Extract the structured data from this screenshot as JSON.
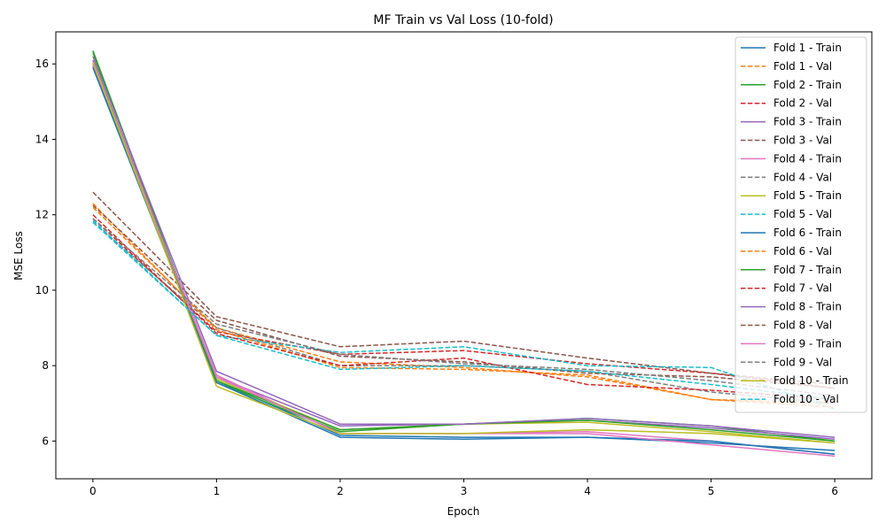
{
  "chart_data": {
    "type": "line",
    "title": "MF Train vs Val Loss (10-fold)",
    "xlabel": "Epoch",
    "ylabel": "MSE Loss",
    "x": [
      0,
      1,
      2,
      3,
      4,
      5,
      6
    ],
    "xticks": [
      0,
      1,
      2,
      3,
      4,
      5,
      6
    ],
    "yticks": [
      6,
      8,
      10,
      12,
      14,
      16
    ],
    "xlim": [
      -0.3,
      6.3
    ],
    "ylim": [
      5.0,
      16.85
    ],
    "grid": false,
    "legend": "top-right",
    "series": [
      {
        "name": "Fold 1 - Train",
        "color": "#1f77b4",
        "dash": "solid",
        "values": [
          15.95,
          7.6,
          6.15,
          6.1,
          6.1,
          5.95,
          5.75
        ]
      },
      {
        "name": "Fold 1 - Val",
        "color": "#ff7f0e",
        "dash": "dashed",
        "values": [
          12.2,
          9.0,
          8.1,
          7.95,
          7.7,
          7.1,
          7.0
        ]
      },
      {
        "name": "Fold 2 - Train",
        "color": "#2ca02c",
        "dash": "solid",
        "values": [
          16.35,
          7.55,
          6.25,
          6.45,
          6.6,
          6.4,
          6.0
        ]
      },
      {
        "name": "Fold 2 - Val",
        "color": "#d62728",
        "dash": "dashed",
        "values": [
          11.9,
          8.9,
          8.3,
          8.4,
          8.05,
          7.8,
          7.4
        ]
      },
      {
        "name": "Fold 3 - Train",
        "color": "#9467bd",
        "dash": "solid",
        "values": [
          16.1,
          7.7,
          6.4,
          6.45,
          6.55,
          6.35,
          6.05
        ]
      },
      {
        "name": "Fold 3 - Val",
        "color": "#8c564b",
        "dash": "dashed",
        "values": [
          12.6,
          9.3,
          8.5,
          8.65,
          8.2,
          7.8,
          7.5
        ]
      },
      {
        "name": "Fold 4 - Train",
        "color": "#e377c2",
        "dash": "solid",
        "values": [
          16.0,
          7.75,
          6.2,
          6.2,
          6.25,
          6.0,
          5.65
        ]
      },
      {
        "name": "Fold 4 - Val",
        "color": "#7f7f7f",
        "dash": "dashed",
        "values": [
          11.8,
          9.0,
          8.0,
          8.0,
          7.85,
          7.3,
          7.0
        ]
      },
      {
        "name": "Fold 5 - Train",
        "color": "#bcbd22",
        "dash": "solid",
        "values": [
          16.05,
          7.65,
          6.3,
          6.45,
          6.5,
          6.25,
          5.95
        ]
      },
      {
        "name": "Fold 5 - Val",
        "color": "#17becf",
        "dash": "dashed",
        "values": [
          11.85,
          8.8,
          8.35,
          8.5,
          8.0,
          7.95,
          6.85
        ]
      },
      {
        "name": "Fold 6 - Train",
        "color": "#1f77b4",
        "dash": "solid",
        "values": [
          15.9,
          7.55,
          6.1,
          6.05,
          6.1,
          6.0,
          5.65
        ]
      },
      {
        "name": "Fold 6 - Val",
        "color": "#ff7f0e",
        "dash": "dashed",
        "values": [
          12.3,
          8.95,
          7.95,
          7.9,
          7.75,
          7.1,
          6.9
        ]
      },
      {
        "name": "Fold 7 - Train",
        "color": "#2ca02c",
        "dash": "solid",
        "values": [
          16.3,
          7.6,
          6.3,
          6.45,
          6.55,
          6.3,
          6.0
        ]
      },
      {
        "name": "Fold 7 - Val",
        "color": "#d62728",
        "dash": "dashed",
        "values": [
          12.0,
          8.85,
          8.0,
          8.2,
          7.5,
          7.35,
          7.1
        ]
      },
      {
        "name": "Fold 8 - Train",
        "color": "#9467bd",
        "dash": "solid",
        "values": [
          16.2,
          7.85,
          6.45,
          6.45,
          6.6,
          6.4,
          6.1
        ]
      },
      {
        "name": "Fold 8 - Val",
        "color": "#8c564b",
        "dash": "dashed",
        "values": [
          12.25,
          9.2,
          8.25,
          8.1,
          7.8,
          7.7,
          7.4
        ]
      },
      {
        "name": "Fold 9 - Train",
        "color": "#e377c2",
        "dash": "solid",
        "values": [
          16.0,
          7.7,
          6.2,
          6.2,
          6.2,
          5.9,
          5.6
        ]
      },
      {
        "name": "Fold 9 - Val",
        "color": "#7f7f7f",
        "dash": "dashed",
        "values": [
          11.9,
          9.1,
          8.3,
          8.05,
          7.9,
          7.6,
          7.2
        ]
      },
      {
        "name": "Fold 10 - Train",
        "color": "#bcbd22",
        "dash": "solid",
        "values": [
          16.05,
          7.45,
          6.2,
          6.2,
          6.3,
          6.2,
          5.95
        ]
      },
      {
        "name": "Fold 10 - Val",
        "color": "#17becf",
        "dash": "dashed",
        "values": [
          11.8,
          8.8,
          7.9,
          8.0,
          7.85,
          7.5,
          7.1
        ]
      }
    ]
  }
}
